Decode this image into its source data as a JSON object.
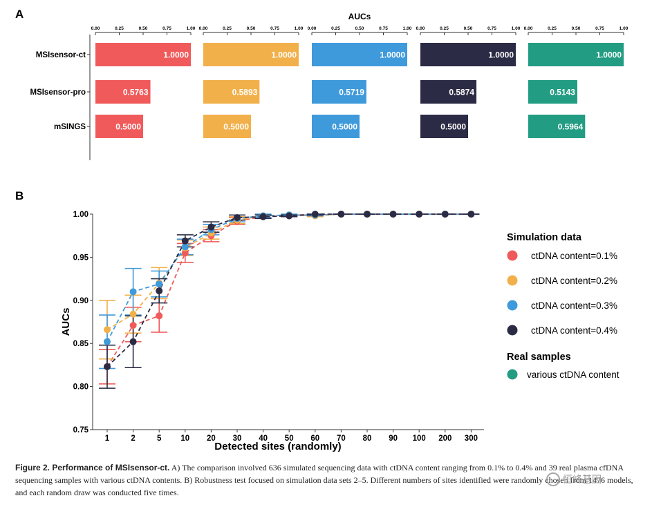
{
  "chart_data": [
    {
      "panel_label": "A",
      "type": "bar",
      "orientation": "horizontal",
      "title": "AUCs",
      "categories": [
        "MSIsensor-ct",
        "MSIsensor-pro",
        "mSINGS"
      ],
      "xlim": [
        0,
        1
      ],
      "tick_labels": [
        "0.00",
        "0.25",
        "0.50",
        "0.75",
        "1.00"
      ],
      "series": [
        {
          "name": "ctDNA content=0.1%",
          "color": "#F05A5A",
          "values": [
            1.0,
            0.5763,
            0.5
          ],
          "labels": [
            "1.0000",
            "0.5763",
            "0.5000"
          ]
        },
        {
          "name": "ctDNA content=0.2%",
          "color": "#F2B04A",
          "values": [
            1.0,
            0.5893,
            0.5
          ],
          "labels": [
            "1.0000",
            "0.5893",
            "0.5000"
          ]
        },
        {
          "name": "ctDNA content=0.3%",
          "color": "#3E9ADB",
          "values": [
            1.0,
            0.5719,
            0.5
          ],
          "labels": [
            "1.0000",
            "0.5719",
            "0.5000"
          ]
        },
        {
          "name": "ctDNA content=0.4%",
          "color": "#2B2B45",
          "values": [
            1.0,
            0.5874,
            0.5
          ],
          "labels": [
            "1.0000",
            "0.5874",
            "0.5000"
          ]
        },
        {
          "name": "various ctDNA content",
          "color": "#229C82",
          "values": [
            1.0,
            0.5143,
            0.5964
          ],
          "labels": [
            "1.0000",
            "0.5143",
            "0.5964"
          ]
        }
      ]
    },
    {
      "panel_label": "B",
      "type": "line",
      "xlabel": "Detected sites (randomly)",
      "ylabel": "AUCs",
      "categories": [
        "1",
        "2",
        "5",
        "10",
        "20",
        "30",
        "40",
        "50",
        "60",
        "70",
        "80",
        "90",
        "100",
        "200",
        "300"
      ],
      "ylim": [
        0.75,
        1.0
      ],
      "yticks": [
        "0.75",
        "0.80",
        "0.85",
        "0.90",
        "0.95",
        "1.00"
      ],
      "series": [
        {
          "name": "ctDNA content=0.1%",
          "color": "#F05A5A",
          "values": [
            0.823,
            0.871,
            0.882,
            0.955,
            0.975,
            0.992,
            0.997,
            0.998,
            0.999,
            1.0,
            1.0,
            1.0,
            1.0,
            1.0,
            1.0
          ],
          "lower": [
            0.803,
            0.852,
            0.863,
            0.944,
            0.968,
            0.988,
            0.995,
            0.997,
            0.998,
            1.0,
            1.0,
            1.0,
            1.0,
            1.0,
            1.0
          ],
          "upper": [
            0.843,
            0.892,
            0.902,
            0.966,
            0.982,
            0.996,
            0.999,
            0.999,
            1.0,
            1.0,
            1.0,
            1.0,
            1.0,
            1.0,
            1.0
          ]
        },
        {
          "name": "ctDNA content=0.2%",
          "color": "#F2B04A",
          "values": [
            0.866,
            0.884,
            0.92,
            0.961,
            0.978,
            0.993,
            0.998,
            0.999,
            0.998,
            1.0,
            1.0,
            1.0,
            1.0,
            1.0,
            1.0
          ],
          "lower": [
            0.832,
            0.862,
            0.902,
            0.952,
            0.971,
            0.989,
            0.996,
            0.998,
            0.997,
            1.0,
            1.0,
            1.0,
            1.0,
            1.0,
            1.0
          ],
          "upper": [
            0.9,
            0.906,
            0.938,
            0.97,
            0.985,
            0.997,
            1.0,
            1.0,
            0.999,
            1.0,
            1.0,
            1.0,
            1.0,
            1.0,
            1.0
          ]
        },
        {
          "name": "ctDNA content=0.3%",
          "color": "#3E9ADB",
          "values": [
            0.852,
            0.91,
            0.919,
            0.962,
            0.982,
            0.995,
            0.998,
            0.999,
            0.999,
            1.0,
            1.0,
            1.0,
            1.0,
            1.0,
            1.0
          ],
          "lower": [
            0.821,
            0.883,
            0.904,
            0.953,
            0.976,
            0.991,
            0.996,
            0.998,
            0.998,
            1.0,
            1.0,
            1.0,
            1.0,
            1.0,
            1.0
          ],
          "upper": [
            0.883,
            0.937,
            0.934,
            0.971,
            0.988,
            0.999,
            1.0,
            1.0,
            1.0,
            1.0,
            1.0,
            1.0,
            1.0,
            1.0,
            1.0
          ]
        },
        {
          "name": "ctDNA content=0.4%",
          "color": "#2B2B45",
          "values": [
            0.823,
            0.852,
            0.911,
            0.969,
            0.985,
            0.996,
            0.997,
            0.998,
            1.0,
            1.0,
            1.0,
            1.0,
            1.0,
            1.0,
            1.0
          ],
          "lower": [
            0.798,
            0.822,
            0.897,
            0.962,
            0.979,
            0.993,
            0.995,
            0.997,
            0.999,
            1.0,
            1.0,
            1.0,
            1.0,
            1.0,
            1.0
          ],
          "upper": [
            0.848,
            0.882,
            0.925,
            0.976,
            0.991,
            0.999,
            0.999,
            0.999,
            1.0,
            1.0,
            1.0,
            1.0,
            1.0,
            1.0,
            1.0
          ]
        }
      ],
      "legend": {
        "position": "right",
        "sim_title": "Simulation data",
        "sim_items": [
          {
            "label": "ctDNA content=0.1%",
            "color": "#F05A5A"
          },
          {
            "label": "ctDNA content=0.2%",
            "color": "#F2B04A"
          },
          {
            "label": "ctDNA content=0.3%",
            "color": "#3E9ADB"
          },
          {
            "label": "ctDNA content=0.4%",
            "color": "#2B2B45"
          }
        ],
        "real_title": "Real samples",
        "real_items": [
          {
            "label": "various ctDNA content",
            "color": "#229C82"
          }
        ]
      }
    }
  ],
  "caption": {
    "lead": "Figure 2.  Performance of MSIsensor-ct.",
    "text": " A) The comparison involved 636 simulated sequencing data with ctDNA content ranging from 0.1% to 0.4% and 39 real plasma cfDNA sequencing samples with various ctDNA contents. B) Robustness test focused on simulation data sets 2–5. Different numbers of sites identified were randomly chosen from 1476 models, and each random draw was conducted five times."
  },
  "watermark": "恒峰基因"
}
